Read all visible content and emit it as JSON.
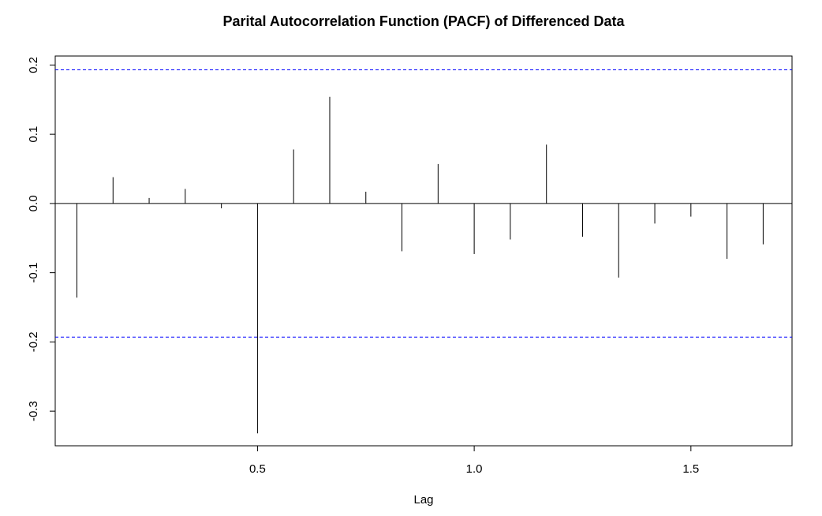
{
  "chart_data": {
    "type": "bar",
    "title": "Parital Autocorrelation Function (PACF) of Differenced Data",
    "xlabel": "Lag",
    "ylabel": "",
    "x": [
      0.0833,
      0.1667,
      0.25,
      0.3333,
      0.4167,
      0.5,
      0.5833,
      0.6667,
      0.75,
      0.8333,
      0.9167,
      1.0,
      1.0833,
      1.1667,
      1.25,
      1.3333,
      1.4167,
      1.5,
      1.5833,
      1.6667
    ],
    "values": [
      -0.136,
      0.038,
      0.008,
      0.021,
      -0.007,
      -0.332,
      0.078,
      0.154,
      0.017,
      -0.069,
      0.057,
      -0.073,
      -0.052,
      0.085,
      -0.048,
      -0.107,
      -0.029,
      -0.019,
      -0.08,
      -0.059
    ],
    "confidence_bound": 0.193,
    "xlim": [
      0.0333,
      1.7333
    ],
    "ylim": [
      -0.35,
      0.213
    ],
    "x_ticks": [
      0.5,
      1.0,
      1.5
    ],
    "x_tick_labels": [
      "0.5",
      "1.0",
      "1.5"
    ],
    "y_ticks": [
      -0.3,
      -0.2,
      -0.1,
      0.0,
      0.1,
      0.2
    ],
    "y_tick_labels": [
      "-0.3",
      "-0.2",
      "-0.1",
      "0.0",
      "0.1",
      "0.2"
    ],
    "grid": false,
    "colors": {
      "bars": "#000000",
      "bounds": "#0000ff",
      "zero_line": "#000000"
    }
  }
}
